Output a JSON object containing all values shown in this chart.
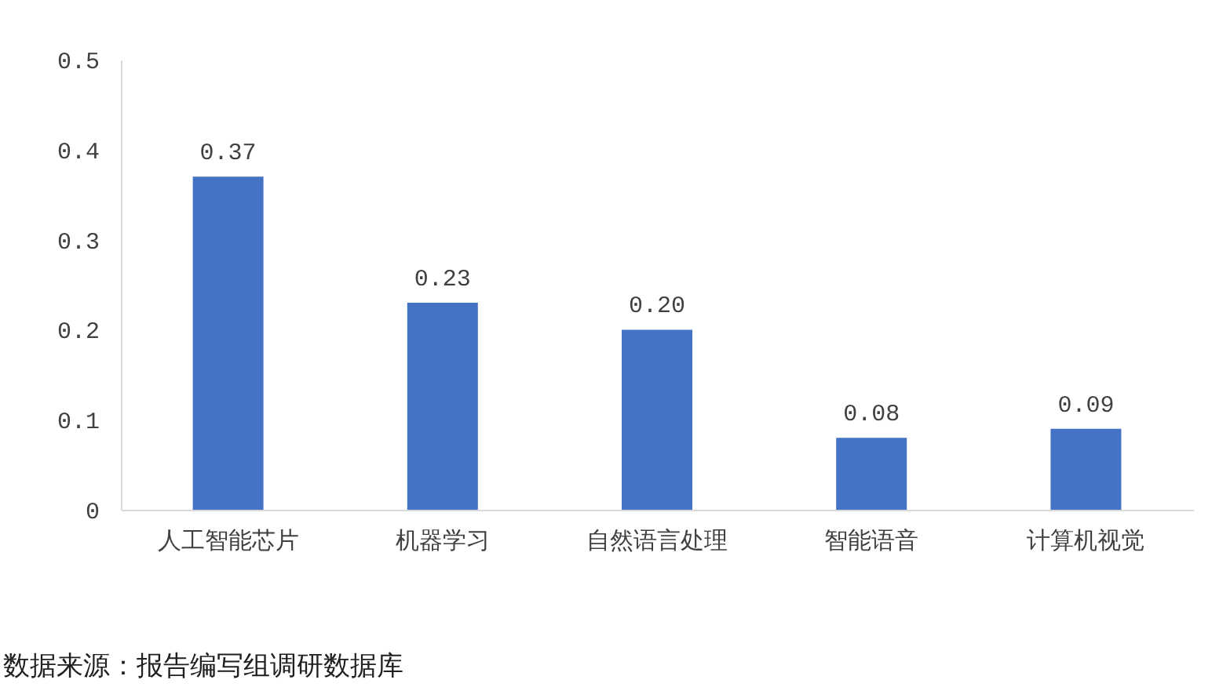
{
  "chart_data": {
    "type": "bar",
    "categories": [
      "人工智能芯片",
      "机器学习",
      "自然语言处理",
      "智能语音",
      "计算机视觉"
    ],
    "values": [
      0.37,
      0.23,
      0.2,
      0.08,
      0.09
    ],
    "value_labels": [
      "0.37",
      "0.23",
      "0.20",
      "0.08",
      "0.09"
    ],
    "color": "#4472c4",
    "ylim": [
      0,
      0.5
    ],
    "yticks": [
      0,
      0.1,
      0.2,
      0.3,
      0.4,
      0.5
    ],
    "grid": false,
    "annotations": [
      "数据来源：报告编写组调研数据库"
    ]
  }
}
